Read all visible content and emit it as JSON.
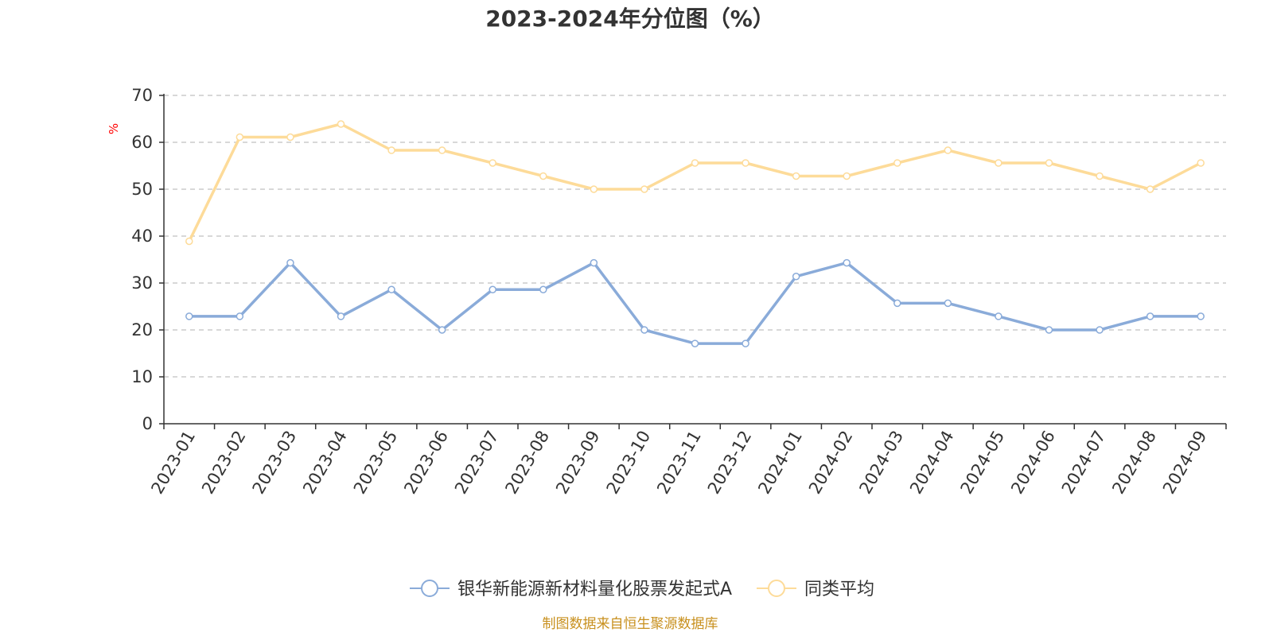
{
  "chart_data": {
    "type": "line",
    "title": "2023-2024年分位图（%）",
    "ylabel": "%",
    "ylim": [
      0,
      70
    ],
    "yticks": [
      0,
      10,
      20,
      30,
      40,
      50,
      60,
      70
    ],
    "grid": true,
    "legend_position": "bottom",
    "categories": [
      "2023-01",
      "2023-02",
      "2023-03",
      "2023-04",
      "2023-05",
      "2023-06",
      "2023-07",
      "2023-08",
      "2023-09",
      "2023-10",
      "2023-11",
      "2023-12",
      "2024-01",
      "2024-02",
      "2024-03",
      "2024-04",
      "2024-05",
      "2024-06",
      "2024-07",
      "2024-08",
      "2024-09"
    ],
    "series": [
      {
        "name": "银华新能源新材料量化股票发起式A",
        "color": "#8aabd9",
        "values": [
          22.9,
          22.9,
          34.3,
          22.9,
          28.6,
          20.0,
          28.6,
          28.6,
          34.3,
          20.0,
          17.1,
          17.1,
          31.4,
          34.3,
          25.7,
          25.7,
          22.9,
          20.0,
          20.0,
          22.9,
          22.9
        ]
      },
      {
        "name": "同类平均",
        "color": "#fddb99",
        "values": [
          38.9,
          61.1,
          61.1,
          63.9,
          58.3,
          58.3,
          55.6,
          52.8,
          50.0,
          50.0,
          55.6,
          55.6,
          52.8,
          52.8,
          55.6,
          58.3,
          55.6,
          55.6,
          52.8,
          50.0,
          55.6
        ]
      }
    ],
    "source": "制图数据来自恒生聚源数据库"
  }
}
